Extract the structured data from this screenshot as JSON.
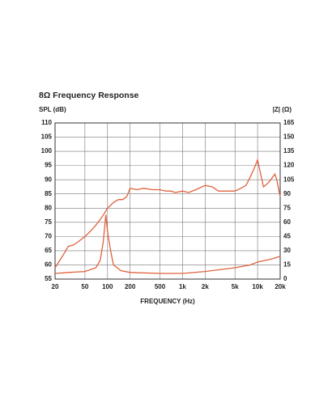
{
  "chart_data": {
    "type": "line",
    "title": "8Ω Frequency Response",
    "y_label": "SPL (dB)",
    "y2_label": "|Z| (Ω)",
    "x_label": "FREQUENCY (Hz)",
    "xscale": "log",
    "grid": true,
    "xlim": [
      20,
      20000
    ],
    "xticks": [
      20,
      50,
      100,
      200,
      500,
      {
        "value": 1000,
        "label": "1k"
      },
      {
        "value": 2000,
        "label": "2k"
      },
      {
        "value": 5000,
        "label": "5k"
      },
      {
        "value": 10000,
        "label": "10k"
      },
      {
        "value": 20000,
        "label": "20k"
      }
    ],
    "ylim": [
      55,
      110
    ],
    "yticks": [
      55,
      60,
      65,
      70,
      75,
      80,
      85,
      90,
      95,
      100,
      105,
      110
    ],
    "y2lim": [
      0,
      165
    ],
    "y2ticks": [
      0,
      15,
      30,
      45,
      60,
      75,
      90,
      105,
      120,
      135,
      150,
      165
    ],
    "series": [
      {
        "color": "#e0623c",
        "x": [
          20,
          25,
          30,
          35,
          40,
          50,
          60,
          70,
          80,
          90,
          100,
          120,
          140,
          160,
          180,
          200,
          250,
          300,
          400,
          500,
          600,
          700,
          800,
          1000,
          1200,
          1500,
          2000,
          2500,
          3000,
          4000,
          5000,
          6000,
          7000,
          8000,
          9000,
          10000,
          11000,
          12000,
          14000,
          16000,
          17000,
          18000,
          19000,
          20000
        ],
        "values": [
          59,
          63,
          66.5,
          67,
          68,
          70,
          72,
          74,
          76,
          78,
          80,
          82,
          83,
          83,
          84,
          87,
          86.5,
          87,
          86.5,
          86.5,
          86,
          86,
          85.5,
          86,
          85.5,
          86.5,
          88,
          87.5,
          86,
          86,
          86,
          87,
          88,
          91,
          94,
          97,
          92,
          87.5,
          89,
          91,
          92,
          90,
          87,
          84
        ]
      },
      {
        "color": "#e0623c",
        "axis": "y2",
        "x": [
          20,
          30,
          50,
          70,
          80,
          88,
          95,
          100,
          110,
          120,
          150,
          200,
          500,
          1000,
          2000,
          5000,
          8000,
          10000,
          15000,
          20000
        ],
        "values": [
          6,
          7,
          8,
          12,
          20,
          40,
          68,
          50,
          30,
          15,
          9,
          7,
          6,
          6,
          8,
          12,
          15,
          18,
          21,
          24
        ]
      }
    ]
  }
}
